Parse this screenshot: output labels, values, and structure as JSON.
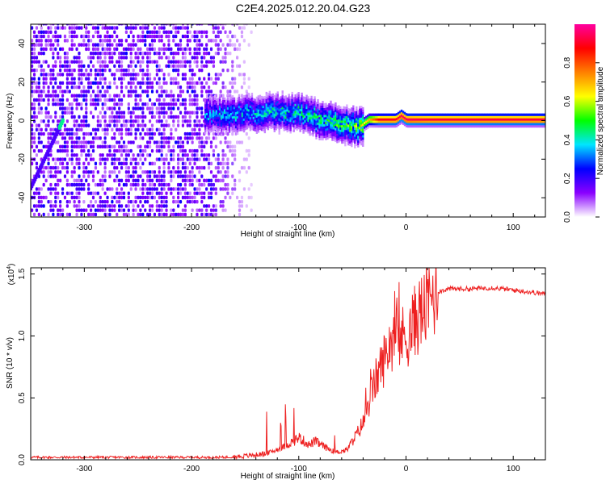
{
  "title": "C2E4.2025.012.20.04.G23",
  "colorbar": {
    "label": "Normalized spectral amplitude",
    "ticks": [
      0.0,
      0.2,
      0.4,
      0.6,
      0.8
    ],
    "tick_labels": [
      "0.0",
      "0.2",
      "0.4",
      "0.6",
      "0.8"
    ],
    "range": [
      0,
      1
    ],
    "colormap": [
      "#ffffff",
      "#8a00ff",
      "#0000ff",
      "#00e5ff",
      "#00ff00",
      "#ffff00",
      "#ff8000",
      "#ff0000",
      "#ff00a0"
    ]
  },
  "chart_data": [
    {
      "type": "heatmap",
      "xlabel": "Height of straight line (km)",
      "ylabel": "Frequency (Hz)",
      "xlim": [
        -350,
        130
      ],
      "ylim": [
        -50,
        50
      ],
      "xticks": [
        -300,
        -200,
        -100,
        0,
        100
      ],
      "xtick_labels": [
        "-300",
        "-200",
        "-100",
        "0",
        "100"
      ],
      "yticks": [
        -40,
        -20,
        0,
        20,
        40
      ],
      "ytick_labels": [
        "-40",
        "-20",
        "0",
        "20",
        "40"
      ],
      "ridge": {
        "x": [
          -185,
          -150,
          -120,
          -100,
          -80,
          -60,
          -45,
          -35,
          -25,
          -10,
          -5,
          0,
          20,
          60,
          100,
          130
        ],
        "y": [
          2,
          3,
          4,
          3,
          0,
          -2,
          -4,
          0,
          0,
          0,
          2,
          0,
          0,
          0,
          0,
          0
        ],
        "amplitude": [
          0.35,
          0.38,
          0.4,
          0.45,
          0.45,
          0.5,
          0.55,
          0.7,
          0.9,
          0.9,
          0.95,
          0.95,
          0.92,
          0.92,
          0.92,
          0.92
        ]
      },
      "diagonal_trace": {
        "x": [
          -350,
          -320
        ],
        "y": [
          -35,
          0
        ]
      },
      "noise_region_x": [
        -350,
        -150
      ]
    },
    {
      "type": "line",
      "xlabel": "Height of straight line (km)",
      "ylabel": "SNR (10 * v/v)",
      "y_multiplier": "(x10",
      "y_multiplier_exp": "4",
      "y_multiplier_close": ")",
      "xlim": [
        -350,
        130
      ],
      "ylim": [
        0,
        1.55
      ],
      "xticks": [
        -300,
        -200,
        -100,
        0,
        100
      ],
      "xtick_labels": [
        "-300",
        "-200",
        "-100",
        "0",
        "100"
      ],
      "yticks": [
        0,
        0.5,
        1.0,
        1.5
      ],
      "ytick_labels": [
        "0.0",
        "0.5",
        "1.0",
        "1.5"
      ],
      "series": [
        {
          "color": "#ee2020",
          "x": [
            -350,
            -300,
            -250,
            -200,
            -170,
            -150,
            -130,
            -115,
            -105,
            -100,
            -95,
            -90,
            -85,
            -75,
            -65,
            -55,
            -50,
            -45,
            -40,
            -35,
            -30,
            -25,
            -20,
            -15,
            -10,
            -5,
            0,
            5,
            10,
            15,
            20,
            25,
            30,
            35,
            40,
            60,
            80,
            100,
            120,
            130
          ],
          "y": [
            0.02,
            0.02,
            0.02,
            0.02,
            0.02,
            0.03,
            0.05,
            0.1,
            0.15,
            0.18,
            0.15,
            0.12,
            0.15,
            0.1,
            0.06,
            0.08,
            0.15,
            0.22,
            0.3,
            0.45,
            0.6,
            0.72,
            0.82,
            0.95,
            1.0,
            0.98,
            1.0,
            1.05,
            1.15,
            1.2,
            1.25,
            1.32,
            1.36,
            1.37,
            1.38,
            1.38,
            1.39,
            1.37,
            1.35,
            1.34
          ]
        }
      ]
    }
  ]
}
